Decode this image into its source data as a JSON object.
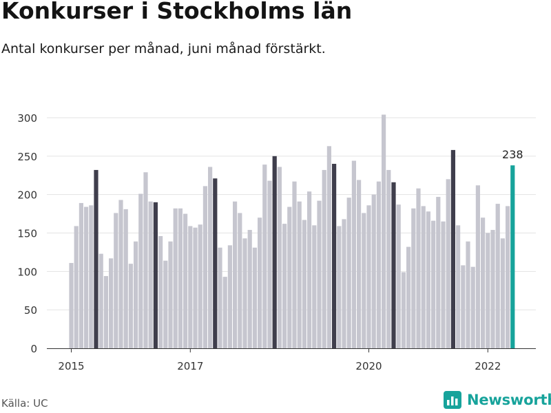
{
  "title": "Konkurser i Stockholms län",
  "subtitle": "Antal konkurser per månad, juni månad förstärkt.",
  "source": "Källa: UC",
  "brand": {
    "name": "Newsworthy",
    "icon": "newsworthy-logo-icon"
  },
  "colors": {
    "default_bar": "#c6c6cf",
    "june_bar": "#3f3e4c",
    "current_bar": "#17a39b",
    "brand": "#17a39b"
  },
  "chart_data": {
    "type": "bar",
    "title": "Konkurser i Stockholms län",
    "subtitle": "Antal konkurser per månad, juni månad förstärkt.",
    "xlabel": "",
    "ylabel": "",
    "ylim": [
      0,
      300
    ],
    "yticks": [
      0,
      50,
      100,
      150,
      200,
      250,
      300
    ],
    "xticks": [
      {
        "label": "2015",
        "month_index": 0
      },
      {
        "label": "2017",
        "month_index": 24
      },
      {
        "label": "2020",
        "month_index": 60
      },
      {
        "label": "2022",
        "month_index": 84
      }
    ],
    "start": "2015-01",
    "highlight_month": 6,
    "grid": "horizontal",
    "data_labels": [
      {
        "month_index": 89,
        "label": "238"
      }
    ],
    "values": [
      111,
      159,
      189,
      184,
      186,
      232,
      123,
      94,
      117,
      176,
      193,
      181,
      110,
      139,
      201,
      229,
      191,
      190,
      146,
      114,
      139,
      182,
      182,
      175,
      159,
      157,
      161,
      211,
      236,
      221,
      131,
      93,
      134,
      191,
      176,
      143,
      154,
      131,
      170,
      239,
      218,
      250,
      236,
      162,
      184,
      217,
      191,
      167,
      204,
      160,
      192,
      232,
      263,
      240,
      159,
      168,
      196,
      244,
      219,
      176,
      186,
      200,
      217,
      304,
      232,
      216,
      187,
      99,
      132,
      182,
      208,
      185,
      178,
      166,
      197,
      165,
      220,
      258,
      160,
      108,
      139,
      106,
      212,
      170,
      150,
      154,
      188,
      143,
      185,
      238
    ]
  }
}
